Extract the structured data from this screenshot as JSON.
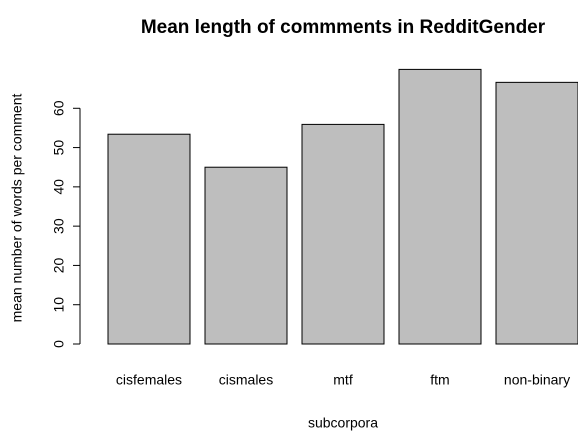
{
  "chart_data": {
    "type": "bar",
    "title": "Mean length of commments in RedditGender",
    "x_label": "subcorpora",
    "y_label": "mean number of words per comment",
    "categories": [
      "cisfemales",
      "cismales",
      "mtf",
      "ftm",
      "non-binary"
    ],
    "values": [
      53.4,
      45.0,
      55.9,
      69.9,
      66.6
    ],
    "color": "#bebebe",
    "ylim": [
      0,
      70
    ],
    "yticks": [
      0,
      10,
      20,
      30,
      40,
      50,
      60
    ],
    "grid": false
  }
}
